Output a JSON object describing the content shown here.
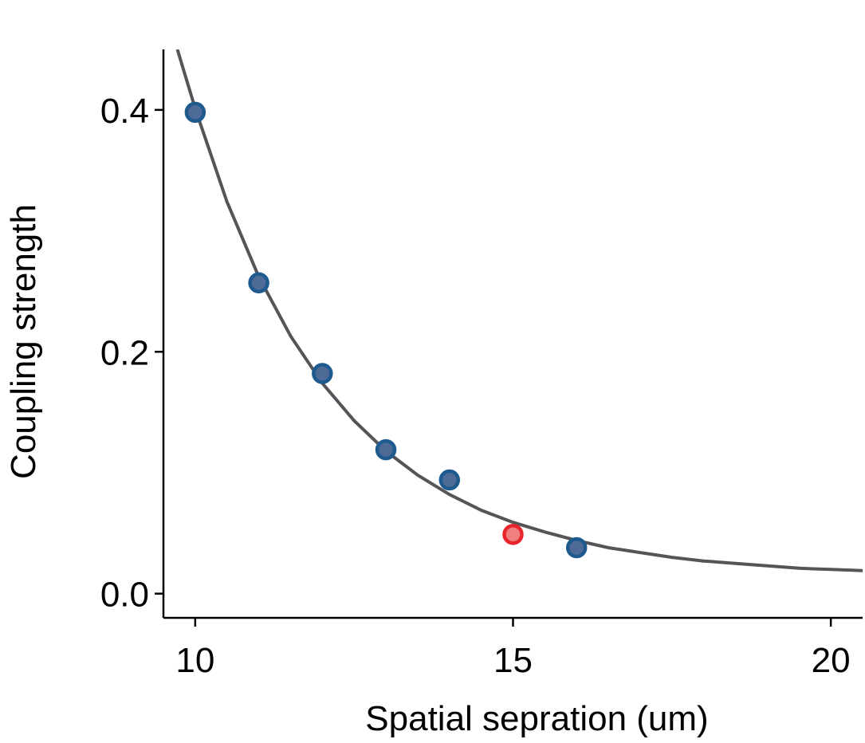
{
  "chart_data": {
    "type": "scatter",
    "title": "",
    "xlabel": "Spatial sepration (um)",
    "ylabel": "Coupling strength",
    "xlim": [
      9.5,
      20.5
    ],
    "ylim": [
      -0.02,
      0.45
    ],
    "xticks": [
      10,
      15,
      20
    ],
    "xtick_labels": [
      "10",
      "15",
      "20"
    ],
    "yticks": [
      0.0,
      0.2,
      0.4
    ],
    "ytick_labels": [
      "0.0",
      "0.2",
      "0.4"
    ],
    "grid": false,
    "series": [
      {
        "marker": "circle",
        "color": "#4e6a96",
        "edge_color": "#1f5a8e",
        "x": [
          10,
          11,
          12,
          13,
          14,
          16
        ],
        "y": [
          0.398,
          0.257,
          0.182,
          0.119,
          0.094,
          0.038
        ]
      },
      {
        "marker": "circle",
        "color": "#f08080",
        "edge_color": "#e8272c",
        "x": [
          15
        ],
        "y": [
          0.049
        ]
      },
      {
        "type": "line",
        "color": "#545459",
        "model": "exponential_decay",
        "x": [
          9.72,
          10,
          10.5,
          11,
          11.5,
          12,
          12.5,
          13,
          13.5,
          14,
          14.5,
          15,
          15.5,
          16,
          16.5,
          17,
          17.5,
          18,
          18.5,
          19,
          19.5,
          20,
          20.5
        ],
        "y": [
          0.45,
          0.401,
          0.324,
          0.262,
          0.213,
          0.174,
          0.143,
          0.118,
          0.098,
          0.082,
          0.069,
          0.059,
          0.051,
          0.044,
          0.038,
          0.034,
          0.03,
          0.027,
          0.025,
          0.023,
          0.021,
          0.02,
          0.019
        ]
      }
    ]
  }
}
